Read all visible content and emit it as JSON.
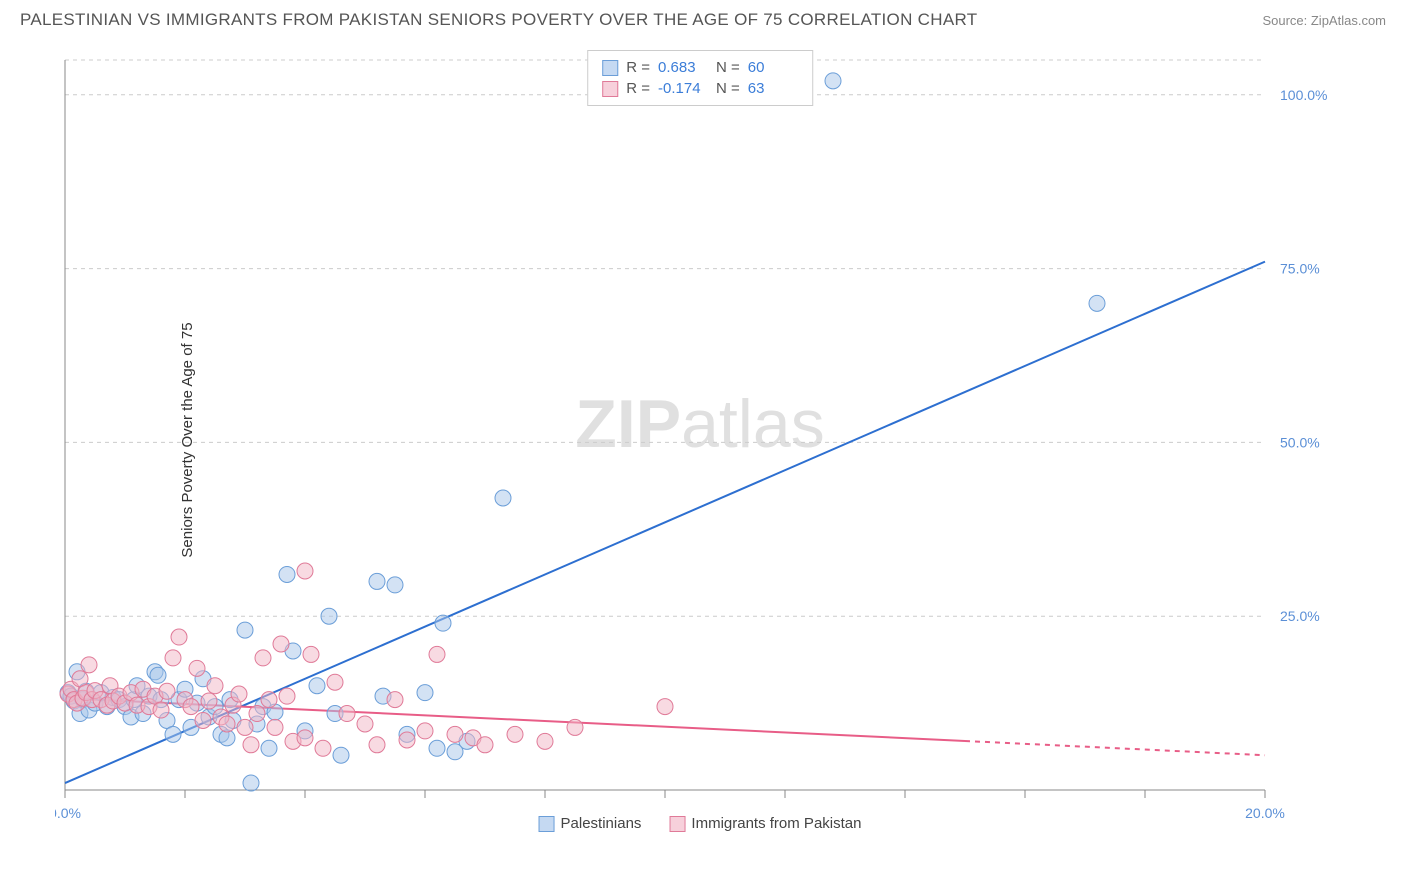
{
  "header": {
    "title": "PALESTINIAN VS IMMIGRANTS FROM PAKISTAN SENIORS POVERTY OVER THE AGE OF 75 CORRELATION CHART",
    "source": "Source: ZipAtlas.com"
  },
  "chart": {
    "type": "scatter",
    "y_axis_label": "Seniors Poverty Over the Age of 75",
    "watermark": "ZIPatlas",
    "background_color": "#ffffff",
    "grid_color": "#cccccc",
    "axis_color": "#888888",
    "xlim": [
      0,
      20
    ],
    "ylim": [
      0,
      105
    ],
    "x_ticks": [
      0,
      2,
      4,
      6,
      8,
      10,
      12,
      14,
      16,
      18,
      20
    ],
    "x_tick_labels_shown": {
      "0": "0.0%",
      "20": "20.0%"
    },
    "y_ticks": [
      25,
      50,
      75,
      100
    ],
    "y_tick_labels": {
      "25": "25.0%",
      "50": "50.0%",
      "75": "75.0%",
      "100": "100.0%"
    },
    "tick_label_color": "#5b8fd6",
    "series": [
      {
        "name": "Palestinians",
        "color_fill": "#a8c5ea",
        "color_stroke": "#6b9ed8",
        "fill_opacity": 0.5,
        "marker_radius": 8,
        "legend_swatch_fill": "#c5d9f2",
        "legend_swatch_stroke": "#6b9ed8",
        "correlation_R": "0.683",
        "correlation_N": "60",
        "trendline": {
          "x1": 0,
          "y1": 1,
          "x2": 20,
          "y2": 76,
          "color": "#2d6fd0",
          "width": 2,
          "dash_from_x": null
        },
        "points": [
          [
            0.05,
            14
          ],
          [
            0.1,
            13.5
          ],
          [
            0.15,
            12.8
          ],
          [
            0.2,
            17
          ],
          [
            0.25,
            11
          ],
          [
            0.3,
            13
          ],
          [
            0.35,
            14.2
          ],
          [
            0.4,
            11.5
          ],
          [
            0.5,
            12.5
          ],
          [
            0.6,
            14
          ],
          [
            0.7,
            12
          ],
          [
            0.8,
            13.3
          ],
          [
            0.9,
            13
          ],
          [
            1.0,
            12
          ],
          [
            1.1,
            10.5
          ],
          [
            1.15,
            13
          ],
          [
            1.2,
            15
          ],
          [
            1.3,
            11
          ],
          [
            1.4,
            13.5
          ],
          [
            1.5,
            17
          ],
          [
            1.55,
            16.5
          ],
          [
            1.6,
            13
          ],
          [
            1.7,
            10
          ],
          [
            1.8,
            8
          ],
          [
            1.9,
            13
          ],
          [
            2.0,
            14.5
          ],
          [
            2.1,
            9
          ],
          [
            2.2,
            12.5
          ],
          [
            2.3,
            16
          ],
          [
            2.4,
            10.5
          ],
          [
            2.5,
            12
          ],
          [
            2.6,
            8
          ],
          [
            2.7,
            7.5
          ],
          [
            2.75,
            13
          ],
          [
            2.8,
            10
          ],
          [
            3.0,
            23
          ],
          [
            3.1,
            1
          ],
          [
            3.2,
            9.5
          ],
          [
            3.3,
            12
          ],
          [
            3.4,
            6
          ],
          [
            3.5,
            11.2
          ],
          [
            3.7,
            31
          ],
          [
            3.8,
            20
          ],
          [
            4.0,
            8.5
          ],
          [
            4.2,
            15
          ],
          [
            4.4,
            25
          ],
          [
            4.5,
            11
          ],
          [
            4.6,
            5
          ],
          [
            5.2,
            30
          ],
          [
            5.3,
            13.5
          ],
          [
            5.5,
            29.5
          ],
          [
            5.7,
            8
          ],
          [
            6.0,
            14
          ],
          [
            6.2,
            6
          ],
          [
            6.3,
            24
          ],
          [
            6.5,
            5.5
          ],
          [
            6.7,
            7
          ],
          [
            7.3,
            42
          ],
          [
            12.8,
            102
          ],
          [
            17.2,
            70
          ]
        ]
      },
      {
        "name": "Immigrants from Pakistan",
        "color_fill": "#f2b6c6",
        "color_stroke": "#e07a98",
        "fill_opacity": 0.5,
        "marker_radius": 8,
        "legend_swatch_fill": "#f7d0db",
        "legend_swatch_stroke": "#e07a98",
        "correlation_R": "-0.174",
        "correlation_N": "63",
        "trendline": {
          "x1": 0,
          "y1": 13.2,
          "x2": 20,
          "y2": 5,
          "color": "#e85d87",
          "width": 2,
          "dash_from_x": 15
        },
        "points": [
          [
            0.05,
            13.8
          ],
          [
            0.1,
            14.5
          ],
          [
            0.15,
            13
          ],
          [
            0.2,
            12.5
          ],
          [
            0.25,
            16
          ],
          [
            0.3,
            13.2
          ],
          [
            0.35,
            14
          ],
          [
            0.4,
            18
          ],
          [
            0.45,
            13
          ],
          [
            0.5,
            14.3
          ],
          [
            0.6,
            13
          ],
          [
            0.7,
            12.2
          ],
          [
            0.75,
            15
          ],
          [
            0.8,
            12.8
          ],
          [
            0.9,
            13.5
          ],
          [
            1.0,
            12.5
          ],
          [
            1.1,
            14
          ],
          [
            1.2,
            12.2
          ],
          [
            1.3,
            14.5
          ],
          [
            1.4,
            12
          ],
          [
            1.5,
            13.5
          ],
          [
            1.6,
            11.5
          ],
          [
            1.7,
            14.2
          ],
          [
            1.8,
            19
          ],
          [
            1.9,
            22
          ],
          [
            2.0,
            13
          ],
          [
            2.1,
            12
          ],
          [
            2.2,
            17.5
          ],
          [
            2.3,
            10
          ],
          [
            2.4,
            12.8
          ],
          [
            2.5,
            15
          ],
          [
            2.6,
            10.5
          ],
          [
            2.7,
            9.5
          ],
          [
            2.8,
            12.2
          ],
          [
            2.9,
            13.8
          ],
          [
            3.0,
            9
          ],
          [
            3.1,
            6.5
          ],
          [
            3.2,
            11
          ],
          [
            3.3,
            19
          ],
          [
            3.4,
            13
          ],
          [
            3.5,
            9
          ],
          [
            3.6,
            21
          ],
          [
            3.7,
            13.5
          ],
          [
            3.8,
            7
          ],
          [
            4.0,
            31.5
          ],
          [
            4.0,
            7.5
          ],
          [
            4.1,
            19.5
          ],
          [
            4.3,
            6
          ],
          [
            4.5,
            15.5
          ],
          [
            4.7,
            11
          ],
          [
            5.0,
            9.5
          ],
          [
            5.2,
            6.5
          ],
          [
            5.5,
            13
          ],
          [
            5.7,
            7.2
          ],
          [
            6.0,
            8.5
          ],
          [
            6.2,
            19.5
          ],
          [
            6.5,
            8
          ],
          [
            6.8,
            7.5
          ],
          [
            7.0,
            6.5
          ],
          [
            7.5,
            8
          ],
          [
            8.0,
            7
          ],
          [
            8.5,
            9
          ],
          [
            10.0,
            12
          ]
        ]
      }
    ],
    "legend_top_labels": {
      "R": "R =",
      "N": "N ="
    },
    "legend_bottom": [
      {
        "label": "Palestinians",
        "fill": "#c5d9f2",
        "stroke": "#6b9ed8"
      },
      {
        "label": "Immigrants from Pakistan",
        "fill": "#f7d0db",
        "stroke": "#e07a98"
      }
    ]
  }
}
